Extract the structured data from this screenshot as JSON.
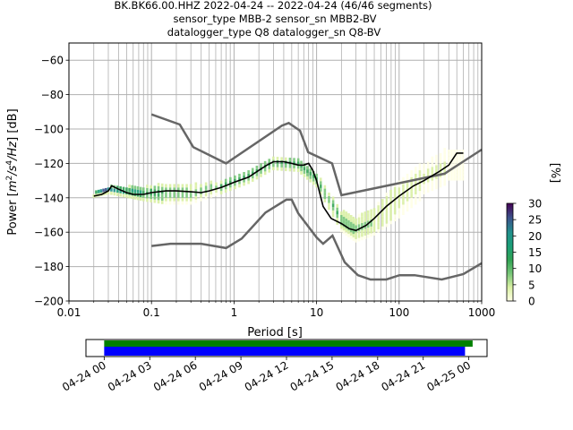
{
  "chart_data": {
    "type": "heatmap",
    "title_lines": [
      "BK.BK66.00.HHZ   2022-04-24 -- 2022-04-24  (46/46 segments)",
      "sensor_type MBB-2 sensor_sn MBB2-BV",
      "datalogger_type Q8 datalogger_sn Q8-BV"
    ],
    "xlabel": "Period [s]",
    "ylabel_parts": {
      "a": "Power [",
      "m": "m",
      "e2": "2",
      "s": "/s",
      "e4": "4",
      "hz": "/Hz",
      "b": "] [dB]"
    },
    "x_scale": "log",
    "xlim": [
      0.01,
      1000
    ],
    "x_ticks": [
      {
        "v": 0.01,
        "label": "0.01"
      },
      {
        "v": 0.1,
        "label": "0.1"
      },
      {
        "v": 1,
        "label": "1"
      },
      {
        "v": 10,
        "label": "10"
      },
      {
        "v": 100,
        "label": "100"
      },
      {
        "v": 1000,
        "label": "1000"
      }
    ],
    "ylim": [
      -200,
      -50
    ],
    "y_ticks": [
      {
        "v": -60,
        "label": "−60"
      },
      {
        "v": -80,
        "label": "−80"
      },
      {
        "v": -100,
        "label": "−100"
      },
      {
        "v": -120,
        "label": "−120"
      },
      {
        "v": -140,
        "label": "−140"
      },
      {
        "v": -160,
        "label": "−160"
      },
      {
        "v": -180,
        "label": "−180"
      },
      {
        "v": -200,
        "label": "−200"
      }
    ],
    "grid": true,
    "colorbar": {
      "label": "[%]",
      "range": [
        0,
        30
      ],
      "ticks": [
        {
          "v": 0,
          "label": "0"
        },
        {
          "v": 5,
          "label": "5"
        },
        {
          "v": 10,
          "label": "10"
        },
        {
          "v": 15,
          "label": "15"
        },
        {
          "v": 20,
          "label": "20"
        },
        {
          "v": 25,
          "label": "25"
        },
        {
          "v": 30,
          "label": "30"
        }
      ],
      "colors": [
        "#ffffe5",
        "#d9f0a3",
        "#78c679",
        "#31a354",
        "#1b9e77",
        "#21918c",
        "#3b528b",
        "#440154"
      ]
    },
    "noise_models": [
      {
        "name": "NHNM",
        "points": [
          [
            0.1,
            -91.5
          ],
          [
            0.22,
            -97.4
          ],
          [
            0.32,
            -110.5
          ],
          [
            0.8,
            -120
          ],
          [
            3.8,
            -98
          ],
          [
            4.6,
            -96.5
          ],
          [
            6.3,
            -101
          ],
          [
            7.9,
            -113.5
          ],
          [
            15.4,
            -120
          ],
          [
            20,
            -138.5
          ],
          [
            354.8,
            -126
          ],
          [
            1000,
            -112
          ]
        ]
      },
      {
        "name": "NLNM",
        "points": [
          [
            0.1,
            -168
          ],
          [
            0.17,
            -166.7
          ],
          [
            0.4,
            -166.7
          ],
          [
            0.8,
            -169.2
          ],
          [
            1.24,
            -163.7
          ],
          [
            2.4,
            -148.6
          ],
          [
            4.3,
            -141.1
          ],
          [
            5,
            -141.1
          ],
          [
            6,
            -149
          ],
          [
            10,
            -163
          ],
          [
            12,
            -166.7
          ],
          [
            15.6,
            -162
          ],
          [
            21.9,
            -177.5
          ],
          [
            31.6,
            -185
          ],
          [
            45,
            -187.5
          ],
          [
            70,
            -187.5
          ],
          [
            101,
            -185
          ],
          [
            154,
            -185
          ],
          [
            328,
            -187.5
          ],
          [
            600,
            -184.4
          ],
          [
            1000,
            -178
          ]
        ]
      }
    ],
    "psd_mode": {
      "x": [
        0.02,
        0.025,
        0.03,
        0.033,
        0.04,
        0.05,
        0.06,
        0.08,
        0.1,
        0.15,
        0.2,
        0.3,
        0.4,
        0.5,
        0.7,
        1,
        1.5,
        2,
        2.5,
        3,
        4,
        5,
        6,
        7,
        8,
        9,
        10,
        12,
        15,
        20,
        25,
        30,
        40,
        50,
        70,
        100,
        150,
        200,
        300,
        400,
        500,
        600
      ],
      "y": [
        -139,
        -138,
        -136,
        -133,
        -135,
        -137,
        -138,
        -138,
        -137,
        -136,
        -136,
        -136.5,
        -137,
        -136,
        -134,
        -131,
        -128,
        -124,
        -121,
        -119,
        -119,
        -120,
        -121,
        -121,
        -120,
        -124,
        -130,
        -145,
        -152,
        -155,
        -158,
        -159,
        -156,
        -152,
        -145,
        -139,
        -133,
        -130,
        -125,
        -121,
        -114,
        -114
      ]
    },
    "psd_spread": [
      {
        "x": 0.02,
        "lo": -140,
        "hi": -138,
        "hits": 30
      },
      {
        "x": 0.03,
        "lo": -138,
        "hi": -134,
        "hits": 22
      },
      {
        "x": 0.05,
        "lo": -140,
        "hi": -134,
        "hits": 18
      },
      {
        "x": 0.08,
        "lo": -142,
        "hi": -134,
        "hits": 14
      },
      {
        "x": 0.15,
        "lo": -144,
        "hi": -132,
        "hits": 10
      },
      {
        "x": 0.3,
        "lo": -144,
        "hi": -133,
        "hits": 10
      },
      {
        "x": 0.7,
        "lo": -138,
        "hi": -131,
        "hits": 14
      },
      {
        "x": 1.5,
        "lo": -132,
        "hi": -124,
        "hits": 14
      },
      {
        "x": 3,
        "lo": -124,
        "hi": -117,
        "hits": 12
      },
      {
        "x": 6,
        "lo": -125,
        "hi": -117,
        "hits": 12
      },
      {
        "x": 10,
        "lo": -134,
        "hi": -126,
        "hits": 12
      },
      {
        "x": 20,
        "lo": -160,
        "hi": -148,
        "hits": 10
      },
      {
        "x": 30,
        "lo": -166,
        "hi": -152,
        "hits": 8
      },
      {
        "x": 50,
        "lo": -162,
        "hi": -146,
        "hits": 6
      },
      {
        "x": 100,
        "lo": -152,
        "hi": -130,
        "hits": 4
      },
      {
        "x": 200,
        "lo": -140,
        "hi": -120,
        "hits": 3
      },
      {
        "x": 400,
        "lo": -134,
        "hi": -110,
        "hits": 2
      }
    ],
    "time_axis": {
      "ticks": [
        "04-24 00",
        "04-24 03",
        "04-24 06",
        "04-24 09",
        "04-24 12",
        "04-24 15",
        "04-24 18",
        "04-24 21",
        "04-25 00"
      ],
      "range_hours": [
        -1.2,
        25.2
      ],
      "data_coverage_hours": [
        0,
        23.75
      ],
      "data_color": "#0000ff",
      "processed_coverage_hours": [
        0,
        24.25
      ],
      "processed_color": "#008000"
    }
  }
}
